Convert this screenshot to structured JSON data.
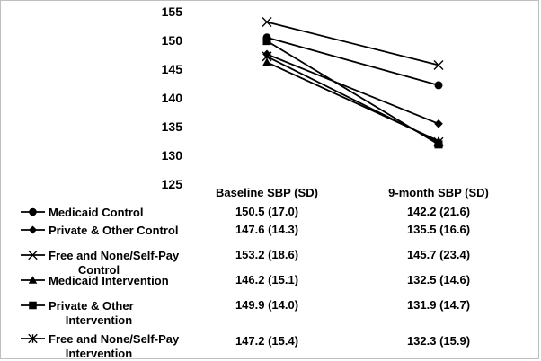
{
  "chart_data": {
    "type": "line",
    "title": "",
    "xlabel": "",
    "ylabel": "",
    "ylim": [
      125,
      155
    ],
    "yticks": [
      125,
      130,
      135,
      140,
      145,
      150,
      155
    ],
    "categories": [
      "Baseline SBP (SD)",
      "9-month SBP (SD)"
    ],
    "series": [
      {
        "name": "Medicaid Control",
        "name_lines": [
          "Medicaid Control"
        ],
        "marker": "circle",
        "color": "#000000",
        "values": [
          150.5,
          142.2
        ],
        "labels": [
          "150.5 (17.0)",
          "142.2 (21.6)"
        ]
      },
      {
        "name": "Private & Other Control",
        "name_lines": [
          "Private & Other Control"
        ],
        "marker": "diamond",
        "color": "#000000",
        "values": [
          147.6,
          135.5
        ],
        "labels": [
          "147.6 (14.3)",
          "135.5 (16.6)"
        ]
      },
      {
        "name": "Free and None/Self-Pay Control",
        "name_lines": [
          "Free and None/Self-Pay",
          "Control"
        ],
        "marker": "x",
        "color": "#000000",
        "values": [
          153.2,
          145.7
        ],
        "labels": [
          "153.2 (18.6)",
          "145.7 (23.4)"
        ]
      },
      {
        "name": "Medicaid Intervention",
        "name_lines": [
          "Medicaid Intervention"
        ],
        "marker": "triangle",
        "color": "#000000",
        "values": [
          146.2,
          132.5
        ],
        "labels": [
          "146.2 (15.1)",
          "132.5 (14.6)"
        ]
      },
      {
        "name": "Private & Other Intervention",
        "name_lines": [
          "Private & Other",
          "Intervention"
        ],
        "marker": "square",
        "color": "#000000",
        "values": [
          149.9,
          131.9
        ],
        "labels": [
          "149.9 (14.0)",
          "131.9 (14.7)"
        ]
      },
      {
        "name": "Free and None/Self-Pay Intervention",
        "name_lines": [
          "Free and None/Self-Pay",
          "Intervention"
        ],
        "marker": "star",
        "color": "#000000",
        "values": [
          147.2,
          132.3
        ],
        "labels": [
          "147.2 (15.4)",
          "132.3 (15.9)"
        ]
      }
    ]
  }
}
